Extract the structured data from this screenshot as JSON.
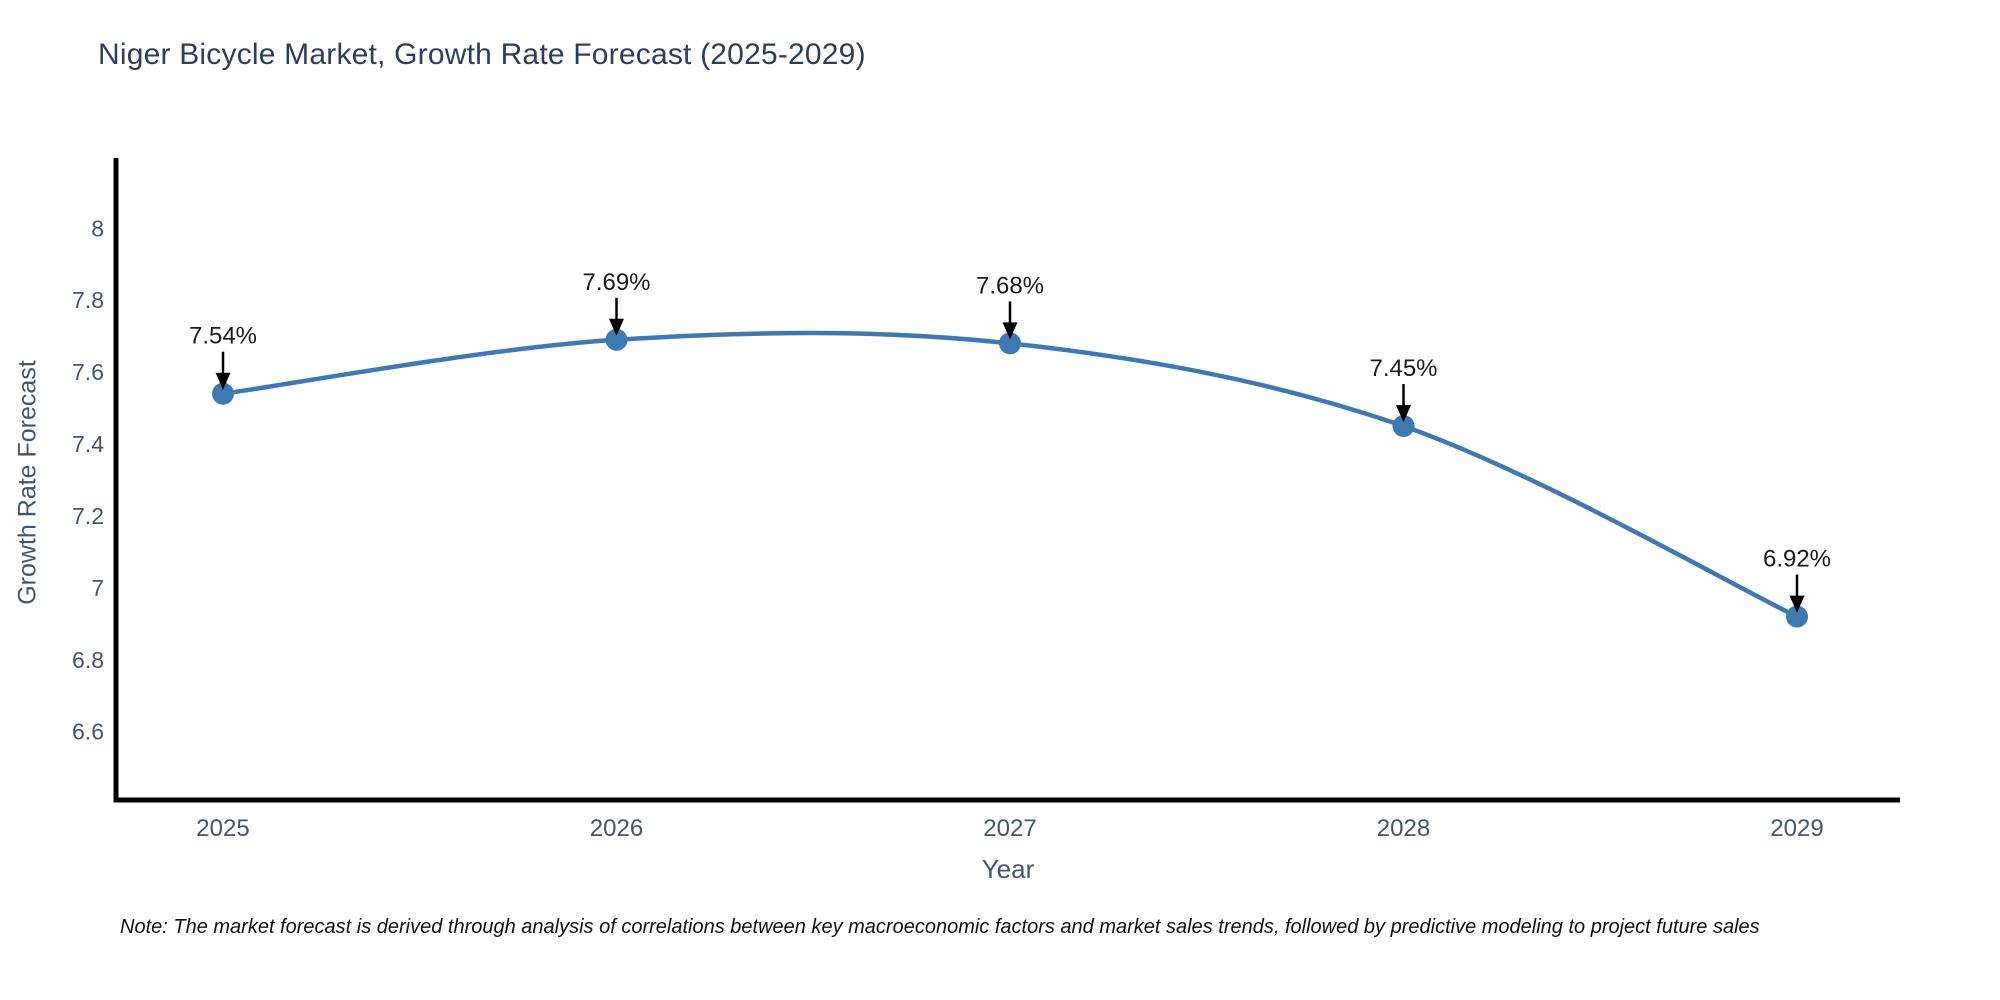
{
  "title": "Niger Bicycle Market, Growth Rate Forecast (2025-2029)",
  "note": "Note: The market forecast is derived through analysis of correlations between key macroeconomic factors and market sales trends, followed by predictive modeling to project future sales",
  "chart_data": {
    "type": "line",
    "title": "Niger Bicycle Market, Growth Rate Forecast (2025-2029)",
    "xlabel": "Year",
    "ylabel": "Growth Rate Forecast",
    "x": [
      "2025",
      "2026",
      "2027",
      "2028",
      "2029"
    ],
    "series": [
      {
        "name": "Growth Rate Forecast",
        "values": [
          7.54,
          7.69,
          7.68,
          7.45,
          6.92
        ]
      }
    ],
    "point_labels": [
      "7.54%",
      "7.69%",
      "7.68%",
      "7.45%",
      "6.92%"
    ],
    "yticks": [
      8,
      7.8,
      7.6,
      7.4,
      7.2,
      7,
      6.8,
      6.6
    ],
    "ylim": [
      6.41,
      8.19
    ],
    "grid": false,
    "legend": "none",
    "line_style": "smooth-spline",
    "colors": {
      "line": "#3e79b2",
      "marker": "#3e79b2",
      "axis": "#000000",
      "tick_label": "#42576b",
      "title": "#2a3f5f",
      "annotation": "#1a1a1a",
      "arrow": "#000000",
      "background": "#ffffff"
    }
  }
}
